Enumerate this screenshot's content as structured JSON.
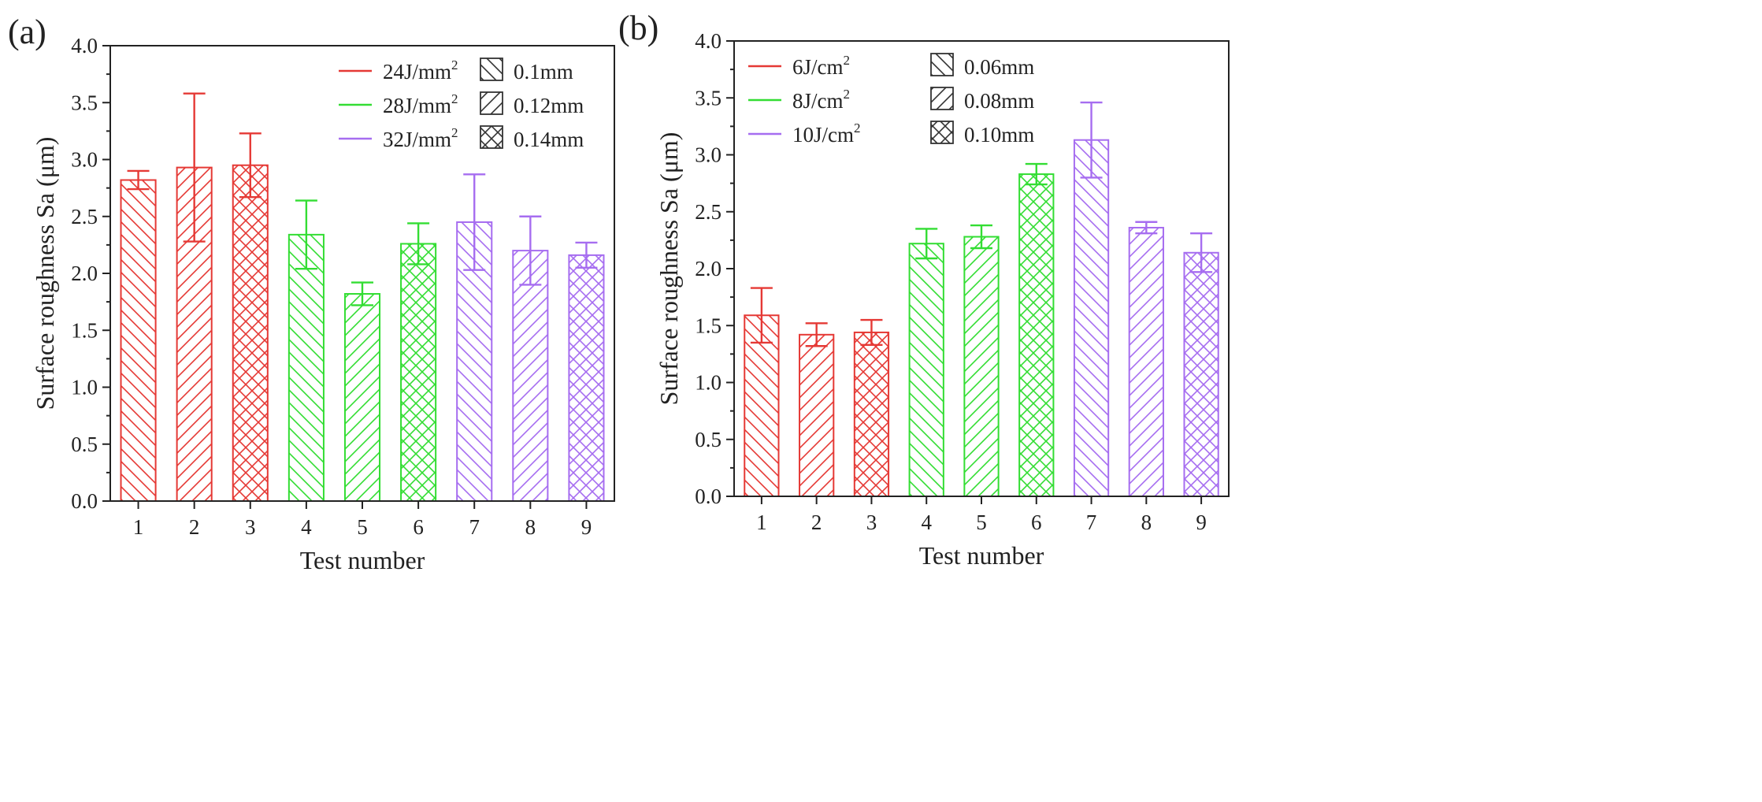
{
  "chart_data": [
    {
      "panel_label": "(a)",
      "type": "bar",
      "xlabel": "Test number",
      "ylabel": "Surface roughness Sa (μm)",
      "ylim": [
        0,
        4.0
      ],
      "yticks": [
        "0.0",
        "0.5",
        "1.0",
        "1.5",
        "2.0",
        "2.5",
        "3.0",
        "3.5",
        "4.0"
      ],
      "categories": [
        "1",
        "2",
        "3",
        "4",
        "5",
        "6",
        "7",
        "8",
        "9"
      ],
      "values": [
        2.82,
        2.93,
        2.95,
        2.34,
        1.82,
        2.26,
        2.45,
        2.2,
        2.16
      ],
      "errors": [
        0.08,
        0.65,
        0.28,
        0.3,
        0.1,
        0.18,
        0.42,
        0.3,
        0.11
      ],
      "bar_colors": [
        "red",
        "red",
        "red",
        "green",
        "green",
        "green",
        "purple",
        "purple",
        "purple"
      ],
      "bar_patterns": [
        "back",
        "fwd",
        "cross",
        "back",
        "fwd",
        "cross",
        "back",
        "fwd",
        "cross"
      ],
      "legend_colors": [
        {
          "label": "24J/mm",
          "sup": "2",
          "color": "red"
        },
        {
          "label": "28J/mm",
          "sup": "2",
          "color": "green"
        },
        {
          "label": "32J/mm",
          "sup": "2",
          "color": "purple"
        }
      ],
      "legend_patterns": [
        {
          "label": "0.1mm",
          "pattern": "back"
        },
        {
          "label": "0.12mm",
          "pattern": "fwd"
        },
        {
          "label": "0.14mm",
          "pattern": "cross"
        }
      ],
      "legend_position": "top-right",
      "grid": false
    },
    {
      "panel_label": "(b)",
      "type": "bar",
      "xlabel": "Test number",
      "ylabel": "Surface roughness Sa (μm)",
      "ylim": [
        0,
        4.0
      ],
      "yticks": [
        "0.0",
        "0.5",
        "1.0",
        "1.5",
        "2.0",
        "2.5",
        "3.0",
        "3.5",
        "4.0"
      ],
      "categories": [
        "1",
        "2",
        "3",
        "4",
        "5",
        "6",
        "7",
        "8",
        "9"
      ],
      "values": [
        1.59,
        1.42,
        1.44,
        2.22,
        2.28,
        2.83,
        3.13,
        2.36,
        2.14
      ],
      "errors": [
        0.24,
        0.1,
        0.11,
        0.13,
        0.1,
        0.09,
        0.33,
        0.05,
        0.17
      ],
      "bar_colors": [
        "red",
        "red",
        "red",
        "green",
        "green",
        "green",
        "purple",
        "purple",
        "purple"
      ],
      "bar_patterns": [
        "back",
        "fwd",
        "cross",
        "back",
        "fwd",
        "cross",
        "back",
        "fwd",
        "cross"
      ],
      "legend_colors": [
        {
          "label": "6J/cm",
          "sup": "2",
          "color": "red"
        },
        {
          "label": "8J/cm",
          "sup": "2",
          "color": "green"
        },
        {
          "label": "10J/cm",
          "sup": "2",
          "color": "purple"
        }
      ],
      "legend_patterns": [
        {
          "label": "0.06mm",
          "pattern": "back"
        },
        {
          "label": "0.08mm",
          "pattern": "fwd"
        },
        {
          "label": "0.10mm",
          "pattern": "cross"
        }
      ],
      "legend_position": "top-left",
      "grid": false
    }
  ],
  "colors": {
    "red": "#e53935",
    "green": "#33dd33",
    "purple": "#a66df0",
    "axis": "#222222"
  }
}
